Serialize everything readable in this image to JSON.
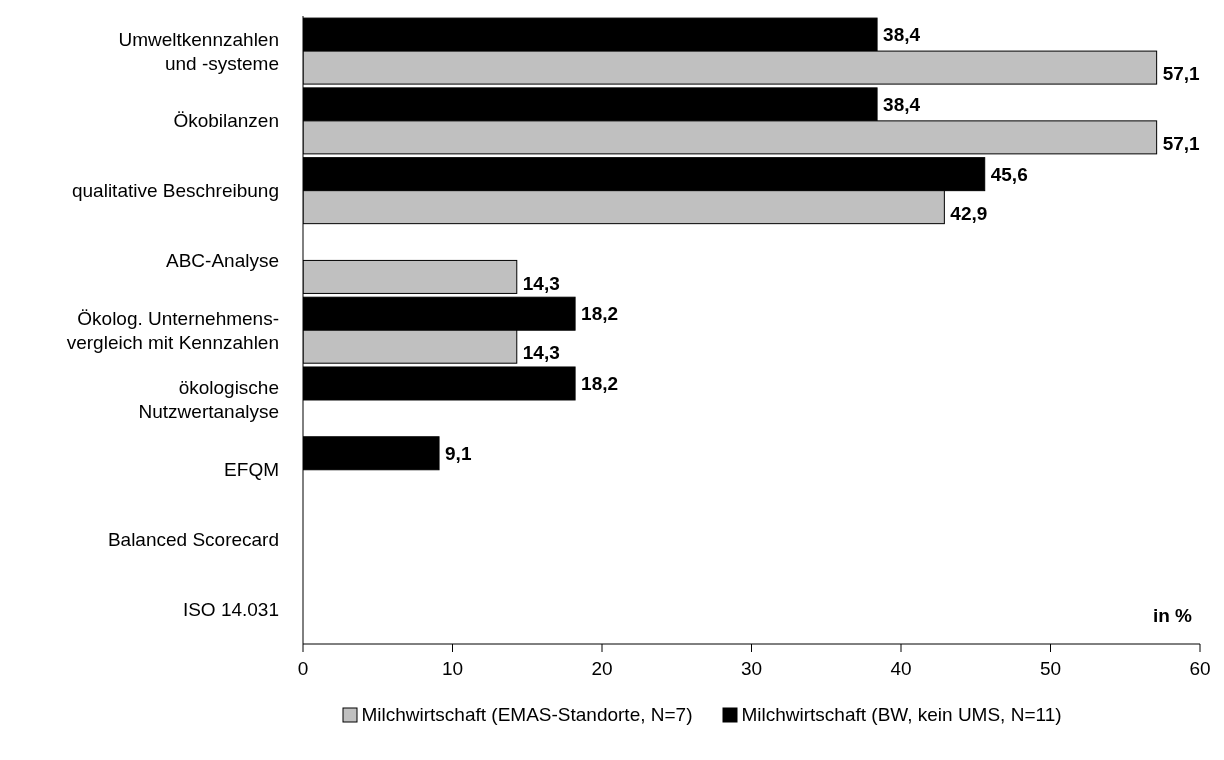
{
  "chart_data": {
    "type": "bar",
    "orientation": "horizontal",
    "xlabel": "in %",
    "categories": [
      "Umweltkennzahlen\nund -systeme",
      "Ökobilanzen",
      "qualitative Beschreibung",
      "ABC-Analyse",
      "Ökolog. Unternehmens-\nvergleich mit Kennzahlen",
      "ökologische\nNutzwertanalyse",
      "EFQM",
      "Balanced Scorecard",
      "ISO 14.031"
    ],
    "series": [
      {
        "name": "Milchwirtschaft (EMAS-Standorte, N=7)",
        "color": "#c0c0c0",
        "values": [
          57.1,
          57.1,
          42.9,
          14.3,
          14.3,
          null,
          null,
          null,
          null
        ],
        "value_labels": [
          "57,1",
          "57,1",
          "42,9",
          "14,3",
          "14,3",
          null,
          null,
          null,
          null
        ]
      },
      {
        "name": "Milchwirtschaft (BW, kein UMS, N=11)",
        "color": "#000000",
        "values": [
          38.4,
          38.4,
          45.6,
          null,
          18.2,
          18.2,
          9.1,
          null,
          null
        ],
        "value_labels": [
          "38,4",
          "38,4",
          "45,6",
          null,
          "18,2",
          "18,2",
          "9,1",
          null,
          null
        ]
      }
    ],
    "xlim": [
      0,
      60
    ],
    "xticks": [
      0,
      10,
      20,
      30,
      40,
      50,
      60
    ],
    "grid": false,
    "legend": "bottom"
  }
}
